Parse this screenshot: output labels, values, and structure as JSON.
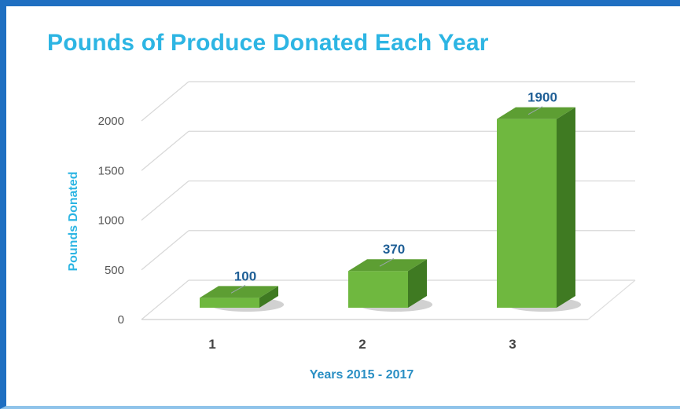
{
  "chart_data": {
    "type": "bar",
    "title": "Pounds of Produce Donated Each Year",
    "xlabel": "Years 2015 - 2017",
    "ylabel": "Pounds Donated",
    "categories": [
      "1",
      "2",
      "3"
    ],
    "values": [
      100,
      370,
      1900
    ],
    "data_labels": [
      "100",
      "370",
      "1900"
    ],
    "y_ticks": [
      "0",
      "500",
      "1000",
      "1500",
      "2000"
    ],
    "ylim": [
      0,
      2000
    ],
    "grid": true,
    "legend": "none",
    "style": "3d-column"
  },
  "colors": {
    "title": "#2db5e3",
    "axis_title": "#2a8fc4",
    "bar_front": "#6fb83f",
    "bar_side": "#3f7a22",
    "bar_top": "#5d9e33",
    "data_label": "#1f5f96",
    "frame_border": "#1f6fc1"
  }
}
